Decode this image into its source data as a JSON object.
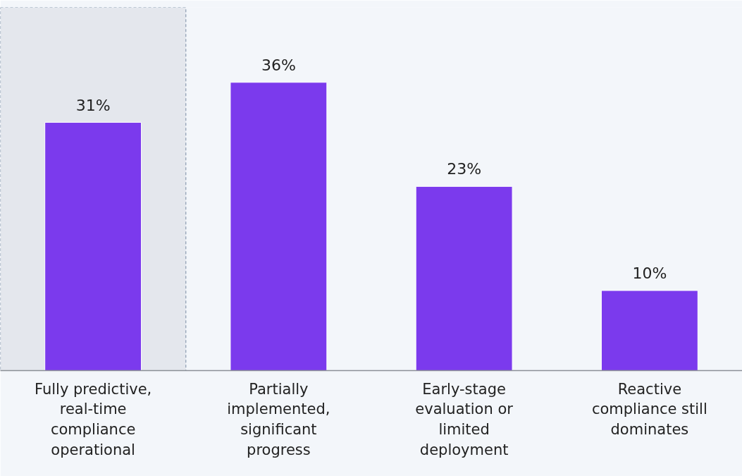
{
  "chart_data": {
    "type": "bar",
    "categories": [
      "Fully predictive, real-time compliance operational",
      "Partially implemented, significant progress",
      "Early-stage evaluation or limited deployment",
      "Reactive compliance still dominates"
    ],
    "values": [
      31,
      36,
      23,
      10
    ],
    "value_labels": [
      "31%",
      "36%",
      "23%",
      "10%"
    ],
    "color": "#7b3aed",
    "bands": [
      {
        "axis": "x",
        "from": "Fully predictive, real-time compliance operational",
        "to": "Fully predictive, real-time compliance operational",
        "color": "#e4e7ed"
      }
    ],
    "grid": false
  }
}
